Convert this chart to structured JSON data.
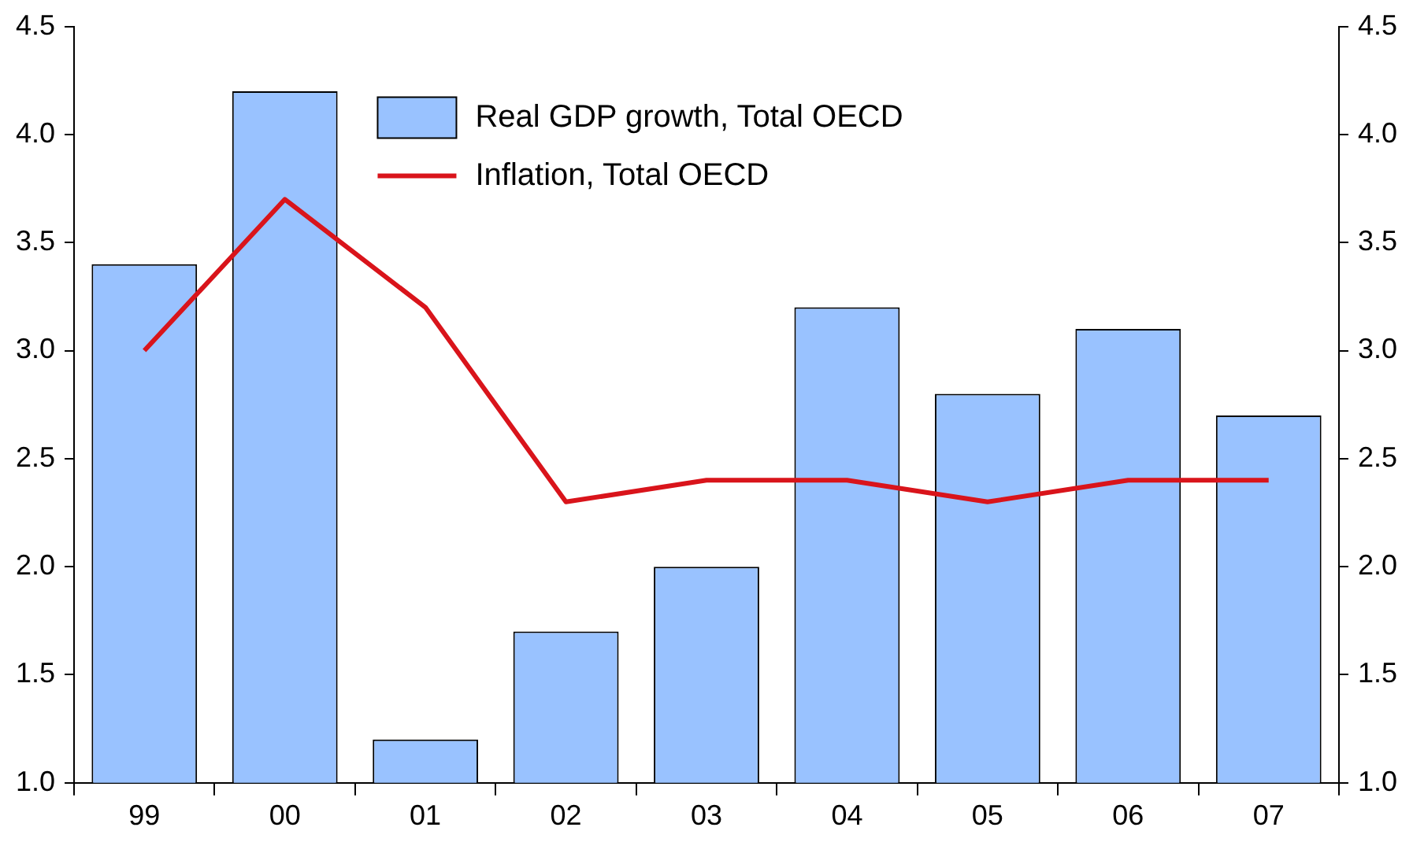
{
  "chart_data": {
    "type": "bar",
    "categories": [
      "99",
      "00",
      "01",
      "02",
      "03",
      "04",
      "05",
      "06",
      "07"
    ],
    "series": [
      {
        "name": "Real GDP growth, Total OECD",
        "color": "#99c2ff",
        "values": [
          3.4,
          4.2,
          1.2,
          1.7,
          2.0,
          3.2,
          2.8,
          3.1,
          2.7
        ]
      },
      {
        "name": "Inflation, Total OECD",
        "type": "line",
        "color": "#d9141b",
        "values": [
          3.0,
          3.7,
          3.2,
          2.3,
          2.4,
          2.4,
          2.3,
          2.4,
          2.4
        ]
      }
    ],
    "ylim": [
      1,
      4.5
    ],
    "yticks": [
      {
        "value": 1,
        "label": "1.0"
      },
      {
        "value": 1.5,
        "label": "1.5"
      },
      {
        "value": 2,
        "label": "2.0"
      },
      {
        "value": 2.5,
        "label": "2.5"
      },
      {
        "value": 3,
        "label": "3.0"
      },
      {
        "value": 3.5,
        "label": "3.5"
      },
      {
        "value": 4,
        "label": "4.0"
      },
      {
        "value": 4.5,
        "label": "4.5"
      }
    ],
    "y2lim": [
      1,
      4.5
    ],
    "y2ticks": [
      {
        "value": 1,
        "label": "1.0"
      },
      {
        "value": 1.5,
        "label": "1.5"
      },
      {
        "value": 2,
        "label": "2.0"
      },
      {
        "value": 2.5,
        "label": "2.5"
      },
      {
        "value": 3,
        "label": "3.0"
      },
      {
        "value": 3.5,
        "label": "3.5"
      },
      {
        "value": 4,
        "label": "4.0"
      },
      {
        "value": 4.5,
        "label": "4.5"
      }
    ],
    "grid": false,
    "legend": "top",
    "marker": "none"
  }
}
